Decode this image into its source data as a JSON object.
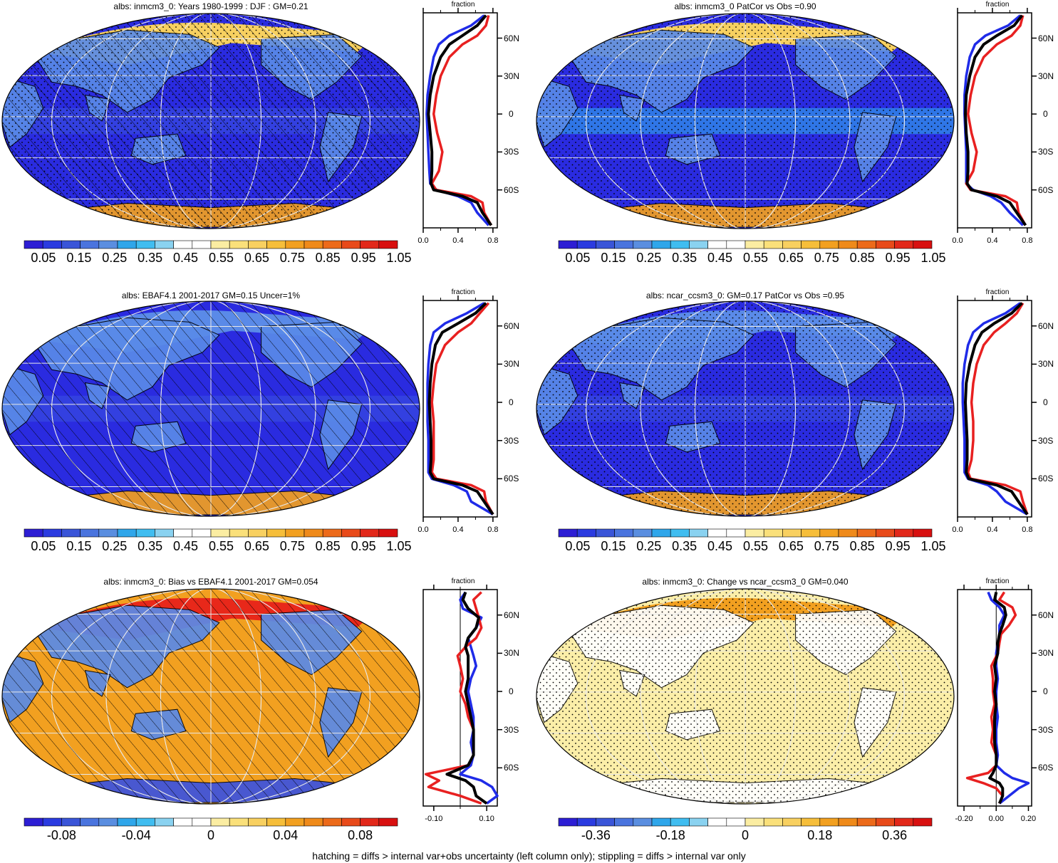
{
  "footer": "hatching = diffs > internal var+obs uncertainty (left column only); stippling = diffs > internal var only",
  "colors": {
    "deep_blue": "#2a2be0",
    "blue": "#3b52e0",
    "light_blue": "#5a8ae8",
    "cyan": "#33b5ec",
    "yellow": "#f7d060",
    "orange": "#f2a020",
    "red": "#e8281a",
    "obs_line": "#000000",
    "model_line_1": "#1f2be8",
    "model_line_2": "#e82020",
    "land_outline": "#000000"
  },
  "colorbar_palette": [
    "#2d1ed4",
    "#2b3be0",
    "#3a55d8",
    "#4a74de",
    "#5a8ee0",
    "#2fa6ea",
    "#40bdf0",
    "#8ad2f0",
    "#ffffff",
    "#ffffff",
    "#fbeda2",
    "#fae07a",
    "#f8d060",
    "#f6be3a",
    "#f2a020",
    "#ef8a1a",
    "#ec6a1a",
    "#e84a1a",
    "#e2281a",
    "#d81010"
  ],
  "panels": [
    {
      "title": "albs: inmcm3_0: Years 1980-1999 : DJF : GM=0.21",
      "colorbar_labels": [
        "0.05",
        "0.15",
        "0.25",
        "0.35",
        "0.45",
        "0.55",
        "0.65",
        "0.75",
        "0.85",
        "0.95",
        "1.05"
      ],
      "profile": {
        "title": "fraction",
        "x_ticks": [
          "0.0",
          "0.4",
          "0.8"
        ],
        "lat_labels": [
          "60N",
          "30N",
          "0",
          "30S",
          "60S"
        ]
      }
    },
    {
      "title": "albs: inmcm3_0 PatCor vs Obs =0.90",
      "colorbar_labels": [
        "0.05",
        "0.15",
        "0.25",
        "0.35",
        "0.45",
        "0.55",
        "0.65",
        "0.75",
        "0.85",
        "0.95",
        "1.05"
      ],
      "profile": {
        "title": "fraction",
        "x_ticks": [
          "0.0",
          "0.4",
          "0.8"
        ],
        "lat_labels": [
          "60N",
          "30N",
          "0",
          "30S",
          "60S"
        ]
      }
    },
    {
      "title": "albs: EBAF4.1 2001-2017 GM=0.15 Uncer=1%",
      "colorbar_labels": [
        "0.05",
        "0.15",
        "0.25",
        "0.35",
        "0.45",
        "0.55",
        "0.65",
        "0.75",
        "0.85",
        "0.95",
        "1.05"
      ],
      "profile": {
        "title": "fraction",
        "x_ticks": [
          "0.0",
          "0.4",
          "0.8"
        ],
        "lat_labels": [
          "60N",
          "30N",
          "0",
          "30S",
          "60S"
        ]
      }
    },
    {
      "title": "albs: ncar_ccsm3_0: GM=0.17 PatCor vs Obs =0.95",
      "colorbar_labels": [
        "0.05",
        "0.15",
        "0.25",
        "0.35",
        "0.45",
        "0.55",
        "0.65",
        "0.75",
        "0.85",
        "0.95",
        "1.05"
      ],
      "profile": {
        "title": "fraction",
        "x_ticks": [
          "0.0",
          "0.4",
          "0.8"
        ],
        "lat_labels": [
          "60N",
          "30N",
          "0",
          "30S",
          "60S"
        ]
      }
    },
    {
      "title": "albs: inmcm3_0: Bias vs EBAF4.1 2001-2017 GM=0.054",
      "colorbar_labels": [
        "-0.08",
        "-0.04",
        "0",
        "0.04",
        "0.08"
      ],
      "profile": {
        "title": "fraction",
        "x_ticks": [
          "-0.10",
          "0.10"
        ],
        "lat_labels": [
          "60N",
          "30N",
          "0",
          "30S",
          "60S"
        ]
      }
    },
    {
      "title": "albs: inmcm3_0: Change vs ncar_ccsm3_0 GM=0.040",
      "colorbar_labels": [
        "-0.36",
        "-0.18",
        "0",
        "0.18",
        "0.36"
      ],
      "profile": {
        "title": "fraction",
        "x_ticks": [
          "-0.20",
          "0.00",
          "0.20"
        ],
        "lat_labels": [
          "60N",
          "30N",
          "0",
          "30S",
          "60S"
        ]
      }
    }
  ],
  "chart_data": [
    {
      "type": "line",
      "title": "fraction",
      "x_ticks": [
        0.0,
        0.4,
        0.8
      ],
      "xlim": [
        0.0,
        0.85
      ],
      "ylim": [
        -90,
        80
      ],
      "lat_ticks": [
        60,
        30,
        0,
        -30,
        -60
      ],
      "series": [
        {
          "color": "blue",
          "lat": [
            78,
            70,
            62,
            55,
            45,
            30,
            15,
            0,
            -15,
            -30,
            -45,
            -55,
            -60,
            -65,
            -70,
            -78,
            -88
          ],
          "values": [
            0.7,
            0.55,
            0.3,
            0.18,
            0.12,
            0.08,
            0.05,
            0.04,
            0.05,
            0.06,
            0.07,
            0.08,
            0.15,
            0.4,
            0.55,
            0.62,
            0.75
          ]
        },
        {
          "color": "red",
          "lat": [
            78,
            70,
            62,
            55,
            45,
            30,
            15,
            0,
            -15,
            -30,
            -45,
            -55,
            -60,
            -65,
            -70,
            -78,
            -88
          ],
          "values": [
            0.75,
            0.72,
            0.62,
            0.45,
            0.3,
            0.2,
            0.15,
            0.12,
            0.16,
            0.22,
            0.18,
            0.1,
            0.15,
            0.55,
            0.68,
            0.7,
            0.78
          ]
        },
        {
          "color": "black",
          "lat": [
            78,
            70,
            62,
            55,
            45,
            30,
            15,
            0,
            -15,
            -30,
            -45,
            -55,
            -60,
            -65,
            -70,
            -78,
            -88
          ],
          "values": [
            0.72,
            0.62,
            0.45,
            0.3,
            0.2,
            0.12,
            0.08,
            0.06,
            0.08,
            0.1,
            0.1,
            0.09,
            0.12,
            0.45,
            0.62,
            0.68,
            0.78
          ]
        }
      ]
    },
    {
      "type": "line",
      "title": "fraction",
      "x_ticks": [
        0.0,
        0.4,
        0.8
      ],
      "xlim": [
        0.0,
        0.85
      ],
      "ylim": [
        -90,
        80
      ],
      "lat_ticks": [
        60,
        30,
        0,
        -30,
        -60
      ],
      "series": [
        {
          "color": "blue",
          "lat": [
            78,
            70,
            62,
            55,
            45,
            30,
            15,
            0,
            -15,
            -30,
            -45,
            -55,
            -60,
            -65,
            -70,
            -78,
            -88
          ],
          "values": [
            0.72,
            0.58,
            0.32,
            0.2,
            0.14,
            0.1,
            0.08,
            0.08,
            0.09,
            0.1,
            0.1,
            0.1,
            0.18,
            0.38,
            0.5,
            0.6,
            0.75
          ]
        },
        {
          "color": "red",
          "lat": [
            78,
            70,
            62,
            55,
            45,
            30,
            15,
            0,
            -15,
            -30,
            -45,
            -55,
            -60,
            -65,
            -70,
            -78,
            -88
          ],
          "values": [
            0.75,
            0.72,
            0.62,
            0.45,
            0.3,
            0.2,
            0.15,
            0.12,
            0.16,
            0.22,
            0.18,
            0.1,
            0.15,
            0.55,
            0.68,
            0.7,
            0.78
          ]
        },
        {
          "color": "black",
          "lat": [
            78,
            70,
            62,
            55,
            45,
            30,
            15,
            0,
            -15,
            -30,
            -45,
            -55,
            -60,
            -65,
            -70,
            -78,
            -88
          ],
          "values": [
            0.74,
            0.65,
            0.45,
            0.3,
            0.2,
            0.14,
            0.1,
            0.09,
            0.1,
            0.12,
            0.12,
            0.11,
            0.16,
            0.45,
            0.6,
            0.68,
            0.78
          ]
        }
      ]
    },
    {
      "type": "line",
      "title": "fraction",
      "x_ticks": [
        0.0,
        0.4,
        0.8
      ],
      "xlim": [
        0.0,
        0.85
      ],
      "ylim": [
        -90,
        80
      ],
      "lat_ticks": [
        60,
        30,
        0,
        -30,
        -60
      ],
      "series": [
        {
          "color": "blue",
          "lat": [
            78,
            70,
            62,
            55,
            45,
            30,
            15,
            0,
            -15,
            -30,
            -45,
            -55,
            -60,
            -65,
            -70,
            -78,
            -88
          ],
          "values": [
            0.7,
            0.5,
            0.25,
            0.12,
            0.08,
            0.06,
            0.05,
            0.05,
            0.05,
            0.06,
            0.06,
            0.06,
            0.1,
            0.35,
            0.5,
            0.55,
            0.8
          ]
        },
        {
          "color": "red",
          "lat": [
            78,
            70,
            62,
            55,
            45,
            30,
            15,
            0,
            -15,
            -30,
            -45,
            -55,
            -60,
            -65,
            -70,
            -78,
            -88
          ],
          "values": [
            0.75,
            0.65,
            0.55,
            0.4,
            0.25,
            0.15,
            0.12,
            0.1,
            0.12,
            0.12,
            0.12,
            0.1,
            0.15,
            0.55,
            0.7,
            0.72,
            0.8
          ]
        },
        {
          "color": "black",
          "lat": [
            78,
            70,
            62,
            55,
            45,
            30,
            15,
            0,
            -15,
            -30,
            -45,
            -55,
            -60,
            -65,
            -70,
            -78,
            -88
          ],
          "values": [
            0.72,
            0.6,
            0.4,
            0.22,
            0.14,
            0.1,
            0.08,
            0.07,
            0.08,
            0.09,
            0.09,
            0.08,
            0.12,
            0.45,
            0.62,
            0.7,
            0.8
          ]
        }
      ]
    },
    {
      "type": "line",
      "title": "fraction",
      "x_ticks": [
        0.0,
        0.4,
        0.8
      ],
      "xlim": [
        0.0,
        0.85
      ],
      "ylim": [
        -90,
        80
      ],
      "lat_ticks": [
        60,
        30,
        0,
        -30,
        -60
      ],
      "series": [
        {
          "color": "blue",
          "lat": [
            78,
            70,
            62,
            55,
            45,
            30,
            15,
            0,
            -15,
            -30,
            -45,
            -55,
            -60,
            -65,
            -70,
            -78,
            -88
          ],
          "values": [
            0.72,
            0.55,
            0.3,
            0.18,
            0.12,
            0.08,
            0.06,
            0.06,
            0.07,
            0.08,
            0.08,
            0.08,
            0.12,
            0.35,
            0.45,
            0.55,
            0.8
          ]
        },
        {
          "color": "red",
          "lat": [
            78,
            70,
            62,
            55,
            45,
            30,
            15,
            0,
            -15,
            -30,
            -45,
            -55,
            -60,
            -65,
            -70,
            -78,
            -88
          ],
          "values": [
            0.75,
            0.68,
            0.55,
            0.42,
            0.3,
            0.22,
            0.18,
            0.16,
            0.18,
            0.18,
            0.16,
            0.12,
            0.15,
            0.55,
            0.72,
            0.75,
            0.8
          ]
        },
        {
          "color": "black",
          "lat": [
            78,
            70,
            62,
            55,
            45,
            30,
            15,
            0,
            -15,
            -30,
            -45,
            -55,
            -60,
            -65,
            -70,
            -78,
            -88
          ],
          "values": [
            0.74,
            0.62,
            0.42,
            0.28,
            0.2,
            0.14,
            0.1,
            0.09,
            0.1,
            0.11,
            0.11,
            0.1,
            0.13,
            0.45,
            0.62,
            0.7,
            0.8
          ]
        }
      ]
    },
    {
      "type": "line",
      "title": "fraction",
      "x_ticks": [
        -0.1,
        0.1
      ],
      "xlim": [
        -0.14,
        0.14
      ],
      "ylim": [
        -90,
        80
      ],
      "lat_ticks": [
        60,
        30,
        0,
        -30,
        -60
      ],
      "series": [
        {
          "color": "blue",
          "lat": [
            78,
            72,
            65,
            58,
            50,
            42,
            35,
            28,
            20,
            10,
            0,
            -10,
            -20,
            -30,
            -40,
            -50,
            -58,
            -65,
            -70,
            -75,
            -82,
            -88
          ],
          "values": [
            0.02,
            0.0,
            0.01,
            0.08,
            0.06,
            0.03,
            0.04,
            0.05,
            0.06,
            0.04,
            0.03,
            0.04,
            0.05,
            0.05,
            0.04,
            0.05,
            0.04,
            0.0,
            0.08,
            0.12,
            0.14,
            0.1
          ]
        },
        {
          "color": "red",
          "lat": [
            78,
            72,
            65,
            58,
            50,
            42,
            35,
            28,
            20,
            10,
            0,
            -10,
            -20,
            -30,
            -40,
            -50,
            -58,
            -65,
            -70,
            -75,
            -82,
            -88
          ],
          "values": [
            0.08,
            0.05,
            0.06,
            0.07,
            0.08,
            0.06,
            0.02,
            -0.01,
            0.0,
            0.01,
            0.0,
            0.02,
            0.03,
            0.05,
            0.05,
            0.05,
            0.03,
            -0.13,
            -0.08,
            -0.12,
            0.0,
            0.08
          ]
        },
        {
          "color": "black",
          "lat": [
            78,
            72,
            65,
            58,
            50,
            42,
            35,
            28,
            20,
            10,
            0,
            -10,
            -20,
            -30,
            -40,
            -50,
            -58,
            -65,
            -70,
            -75,
            -82,
            -88
          ],
          "values": [
            0.02,
            0.01,
            0.03,
            0.07,
            0.06,
            0.03,
            0.02,
            0.03,
            0.03,
            0.03,
            0.02,
            0.03,
            0.04,
            0.05,
            0.05,
            0.05,
            0.03,
            -0.05,
            0.02,
            0.05,
            0.06,
            0.1
          ]
        }
      ]
    },
    {
      "type": "line",
      "title": "fraction",
      "x_ticks": [
        -0.2,
        0.0,
        0.2
      ],
      "xlim": [
        -0.24,
        0.22
      ],
      "ylim": [
        -90,
        80
      ],
      "lat_ticks": [
        60,
        30,
        0,
        -30,
        -60
      ],
      "series": [
        {
          "color": "blue",
          "lat": [
            78,
            72,
            66,
            60,
            52,
            45,
            38,
            30,
            20,
            10,
            0,
            -10,
            -20,
            -30,
            -40,
            -50,
            -58,
            -64,
            -68,
            -72,
            -76,
            -82,
            -88
          ],
          "values": [
            -0.05,
            -0.03,
            0.02,
            0.05,
            0.02,
            0.02,
            0.01,
            0.0,
            0.0,
            0.01,
            0.0,
            0.0,
            0.01,
            0.0,
            0.0,
            0.01,
            0.0,
            0.05,
            0.1,
            0.2,
            0.14,
            0.08,
            0.02
          ]
        },
        {
          "color": "red",
          "lat": [
            78,
            72,
            66,
            60,
            52,
            45,
            38,
            30,
            20,
            10,
            0,
            -10,
            -20,
            -30,
            -40,
            -50,
            -58,
            -64,
            -68,
            -72,
            -76,
            -82,
            -88
          ],
          "values": [
            0.05,
            0.02,
            0.1,
            0.12,
            0.08,
            0.03,
            0.02,
            0.01,
            -0.03,
            -0.02,
            -0.02,
            -0.01,
            -0.03,
            -0.02,
            -0.03,
            0.0,
            0.0,
            -0.05,
            -0.18,
            -0.08,
            0.0,
            0.04,
            0.02
          ]
        },
        {
          "color": "black",
          "lat": [
            78,
            72,
            66,
            60,
            52,
            45,
            38,
            30,
            20,
            10,
            0,
            -10,
            -20,
            -30,
            -40,
            -50,
            -58,
            -64,
            -68,
            -72,
            -76,
            -82,
            -88
          ],
          "values": [
            0.0,
            -0.01,
            0.05,
            0.06,
            0.04,
            0.02,
            0.01,
            0.01,
            -0.01,
            0.0,
            -0.01,
            0.0,
            -0.01,
            -0.01,
            -0.01,
            0.0,
            0.0,
            -0.02,
            -0.04,
            0.02,
            0.04,
            0.04,
            0.02
          ]
        }
      ]
    }
  ]
}
